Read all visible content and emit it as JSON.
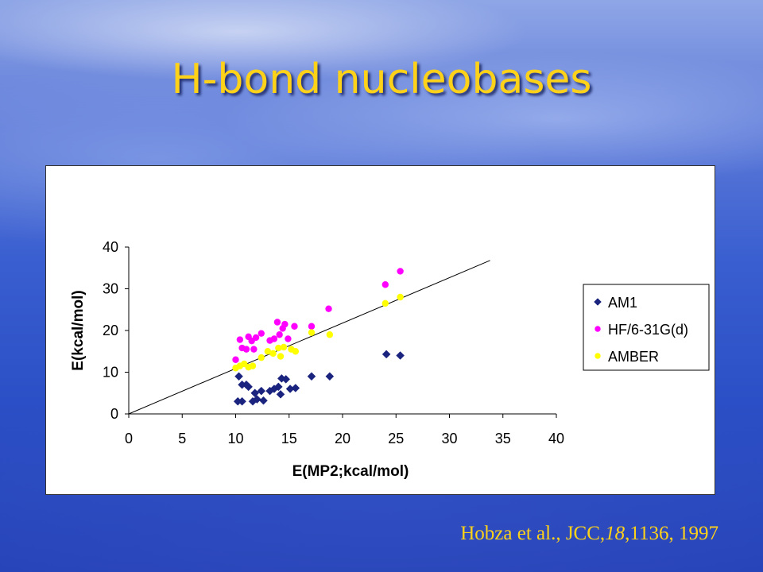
{
  "slide": {
    "title": "H-bond nucleobases",
    "citation": {
      "prefix": "Hobza et al., JCC,",
      "volume": "18",
      "suffix": ",1136, 1997"
    }
  },
  "chart_data": {
    "type": "scatter",
    "xlabel": "E(MP2;kcal/mol)",
    "ylabel": "E(kcal/mol)",
    "xlim": [
      0,
      40
    ],
    "ylim": [
      0,
      40
    ],
    "xticks": [
      "0",
      "5",
      "10",
      "15",
      "20",
      "25",
      "30",
      "35",
      "40"
    ],
    "yticks": [
      "0",
      "10",
      "20",
      "30",
      "40"
    ],
    "grid": false,
    "legend_position": "right",
    "series": [
      {
        "name": "AM1",
        "marker": "diamond",
        "color": "#1a237e",
        "points": [
          [
            10.2,
            3.0
          ],
          [
            10.6,
            3.0
          ],
          [
            10.3,
            9.0
          ],
          [
            10.6,
            7.0
          ],
          [
            11.0,
            7.0
          ],
          [
            11.2,
            6.5
          ],
          [
            11.6,
            3.0
          ],
          [
            11.8,
            5.0
          ],
          [
            12.0,
            3.5
          ],
          [
            12.4,
            5.5
          ],
          [
            12.6,
            3.2
          ],
          [
            13.2,
            5.5
          ],
          [
            13.6,
            6.0
          ],
          [
            14.0,
            6.5
          ],
          [
            14.2,
            4.7
          ],
          [
            14.3,
            8.5
          ],
          [
            14.7,
            8.3
          ],
          [
            15.1,
            6.0
          ],
          [
            15.6,
            6.2
          ],
          [
            17.1,
            9.0
          ],
          [
            18.8,
            9.0
          ],
          [
            24.1,
            14.3
          ],
          [
            25.4,
            14.0
          ]
        ]
      },
      {
        "name": "HF/6-31G(d)",
        "marker": "circle",
        "color": "#ff00ff",
        "points": [
          [
            10.0,
            13.0
          ],
          [
            10.4,
            17.8
          ],
          [
            10.6,
            15.8
          ],
          [
            11.0,
            15.5
          ],
          [
            11.2,
            18.5
          ],
          [
            11.5,
            17.5
          ],
          [
            11.9,
            18.3
          ],
          [
            11.7,
            15.5
          ],
          [
            12.4,
            19.3
          ],
          [
            13.2,
            17.6
          ],
          [
            13.6,
            18.0
          ],
          [
            13.9,
            22.0
          ],
          [
            14.1,
            19.0
          ],
          [
            14.4,
            20.5
          ],
          [
            14.6,
            21.5
          ],
          [
            14.9,
            18.0
          ],
          [
            15.5,
            21.0
          ],
          [
            17.1,
            21.0
          ],
          [
            18.7,
            25.2
          ],
          [
            24.0,
            31.0
          ],
          [
            25.4,
            34.2
          ]
        ]
      },
      {
        "name": "AMBER",
        "marker": "circle",
        "color": "#ffff00",
        "points": [
          [
            10.0,
            11.0
          ],
          [
            10.4,
            11.5
          ],
          [
            10.8,
            12.0
          ],
          [
            11.2,
            11.2
          ],
          [
            11.6,
            11.5
          ],
          [
            12.4,
            13.5
          ],
          [
            13.0,
            15.0
          ],
          [
            13.5,
            14.5
          ],
          [
            14.0,
            15.8
          ],
          [
            14.5,
            16.0
          ],
          [
            14.2,
            13.8
          ],
          [
            15.2,
            15.5
          ],
          [
            15.6,
            15.0
          ],
          [
            17.1,
            19.5
          ],
          [
            18.8,
            19.0
          ],
          [
            24.0,
            26.5
          ],
          [
            25.4,
            28.0
          ]
        ]
      }
    ],
    "trendline": {
      "x": [
        0,
        33.8
      ],
      "y": [
        0,
        36.8
      ]
    }
  }
}
